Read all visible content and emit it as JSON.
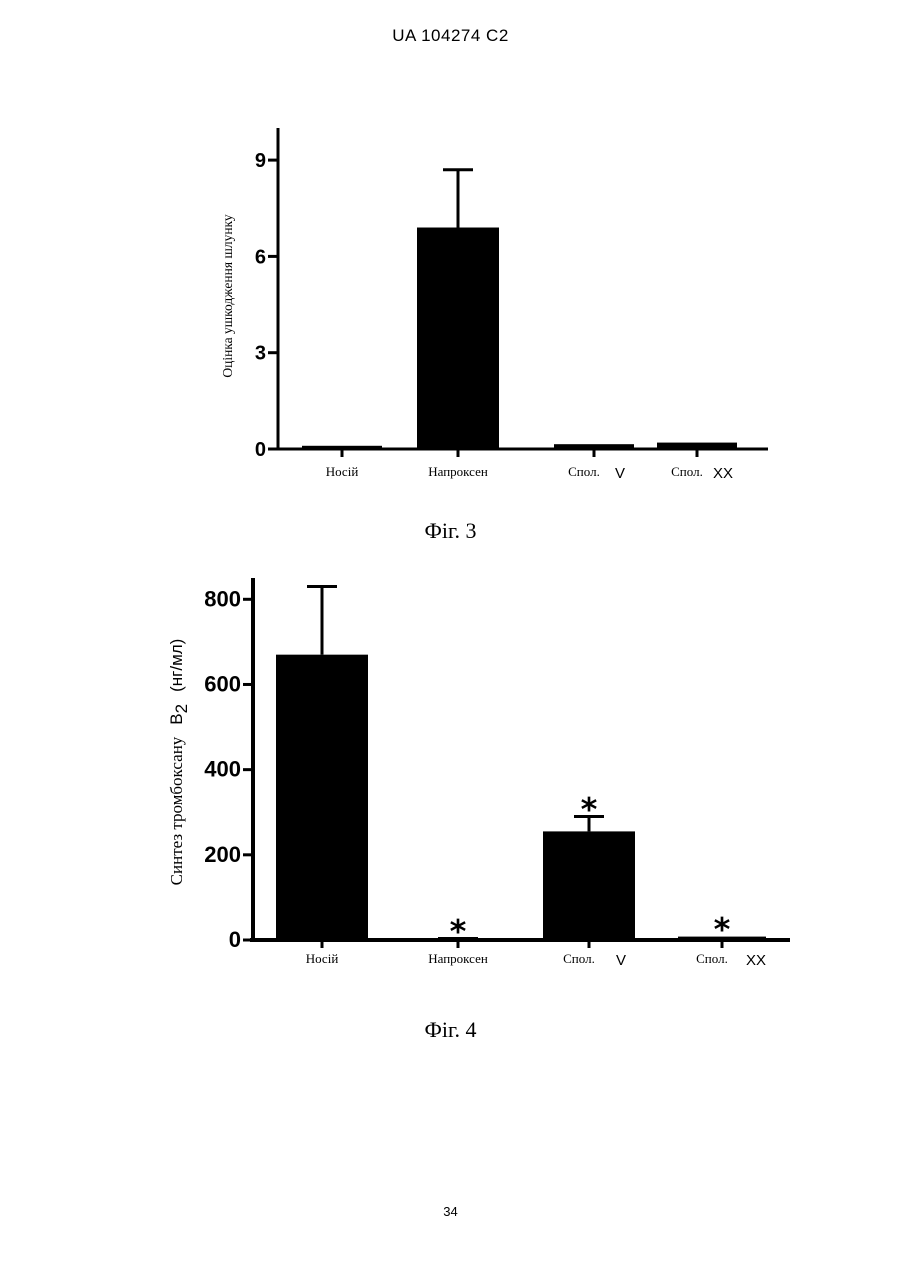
{
  "header": "UA   104274   C2",
  "page_number": "34",
  "chart_data": [
    {
      "type": "bar",
      "caption": "Фіг. 3",
      "ylabel": "Оцінка ушкодження шлунку",
      "categories": [
        "Носій",
        "Напроксен",
        "Спол.",
        "Спол."
      ],
      "category_suffixes": [
        "",
        "",
        "V",
        "XX"
      ],
      "values": [
        0.1,
        6.9,
        0.15,
        0.2
      ],
      "errors": [
        0,
        1.8,
        0,
        0
      ],
      "significance": [
        "",
        "",
        "",
        ""
      ],
      "yticks": [
        0,
        3,
        6,
        9
      ],
      "ylim": [
        0,
        10
      ]
    },
    {
      "type": "bar",
      "caption": "Фіг. 4",
      "ylabel": "Синтез тромбоксану",
      "ylabel_suffix": "B",
      "ylabel_subscript": "2",
      "ylabel_unit": "(нг/мл)",
      "categories": [
        "Носій",
        "Напроксен",
        "Спол.",
        "Спол."
      ],
      "category_suffixes": [
        "",
        "",
        "V",
        "XX"
      ],
      "values": [
        670,
        3,
        255,
        8
      ],
      "errors": [
        160,
        0,
        35,
        0
      ],
      "significance": [
        "",
        "*",
        "*",
        "*"
      ],
      "yticks": [
        0,
        200,
        400,
        600,
        800
      ],
      "ylim": [
        0,
        850
      ]
    }
  ]
}
